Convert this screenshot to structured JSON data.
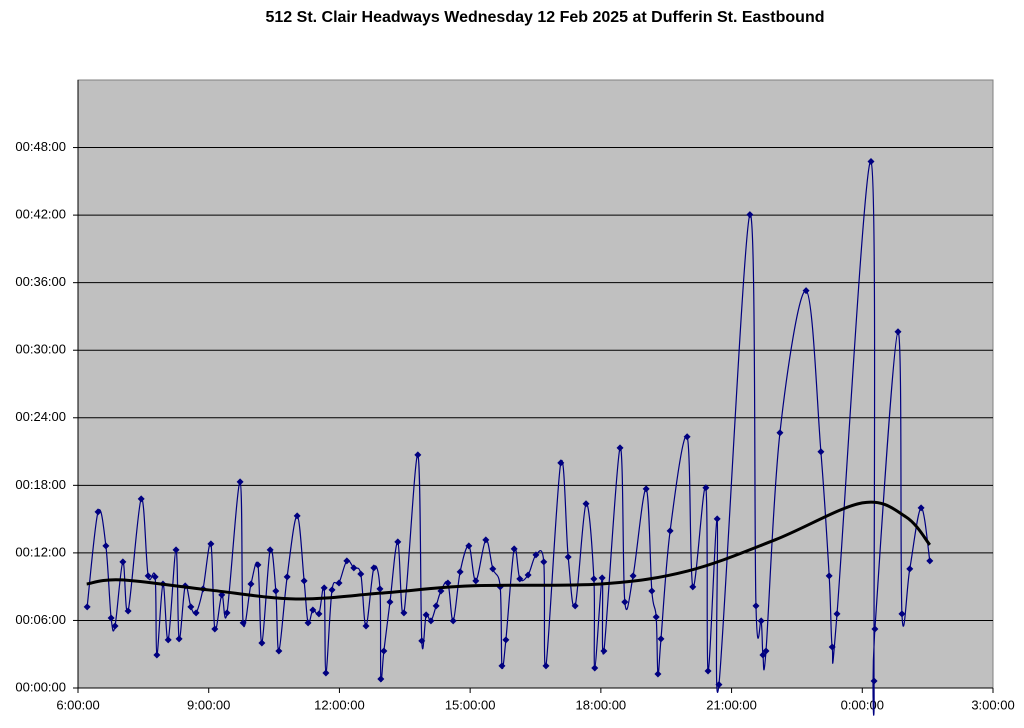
{
  "chart_data": {
    "type": "line",
    "title": "512 St. Clair Headways Wednesday 12 Feb 2025 at Dufferin St. Eastbound",
    "xlim": [
      6,
      27
    ],
    "xticks": [
      {
        "value": 6,
        "label": "6:00:00"
      },
      {
        "value": 9,
        "label": "9:00:00"
      },
      {
        "value": 12,
        "label": "12:00:00"
      },
      {
        "value": 15,
        "label": "15:00:00"
      },
      {
        "value": 18,
        "label": "18:00:00"
      },
      {
        "value": 21,
        "label": "21:00:00"
      },
      {
        "value": 24,
        "label": "0:00:00"
      },
      {
        "value": 27,
        "label": "3:00:00"
      }
    ],
    "ylim": [
      0,
      54
    ],
    "yticks": [
      {
        "value": 0,
        "label": "00:00:00"
      },
      {
        "value": 6,
        "label": "00:06:00"
      },
      {
        "value": 12,
        "label": "00:12:00"
      },
      {
        "value": 18,
        "label": "00:18:00"
      },
      {
        "value": 24,
        "label": "00:24:00"
      },
      {
        "value": 30,
        "label": "00:30:00"
      },
      {
        "value": 36,
        "label": "00:36:00"
      },
      {
        "value": 42,
        "label": "00:42:00"
      },
      {
        "value": 48,
        "label": "00:48:00"
      }
    ],
    "grid": true,
    "plot_background": "#c0c0c0",
    "series": [
      {
        "color": "#000080",
        "markers": true,
        "smooth": true,
        "x": [
          6.21,
          6.46,
          6.64,
          6.76,
          6.85,
          7.03,
          7.15,
          7.45,
          7.61,
          7.77,
          7.81,
          7.95,
          8.07,
          8.25,
          8.32,
          8.46,
          8.59,
          8.71,
          8.87,
          9.05,
          9.14,
          9.3,
          9.42,
          9.72,
          9.79,
          9.97,
          10.13,
          10.22,
          10.41,
          10.54,
          10.61,
          10.8,
          11.03,
          11.19,
          11.28,
          11.39,
          11.53,
          11.65,
          11.69,
          11.83,
          11.99,
          12.17,
          12.33,
          12.49,
          12.61,
          12.79,
          12.93,
          12.95,
          13.02,
          13.16,
          13.34,
          13.48,
          13.8,
          13.89,
          13.99,
          14.1,
          14.22,
          14.33,
          14.49,
          14.61,
          14.77,
          14.97,
          15.13,
          15.36,
          15.52,
          15.69,
          15.73,
          15.82,
          16.01,
          16.14,
          16.33,
          16.51,
          16.69,
          16.74,
          17.08,
          17.25,
          17.41,
          17.66,
          17.84,
          17.86,
          18.03,
          18.07,
          18.44,
          18.55,
          18.74,
          19.04,
          19.17,
          19.27,
          19.31,
          19.38,
          19.59,
          19.98,
          20.11,
          20.41,
          20.46,
          20.67,
          20.71,
          21.42,
          21.56,
          21.68,
          21.72,
          21.79,
          22.11,
          22.71,
          23.05,
          23.24,
          23.31,
          23.42,
          24.2,
          24.27,
          24.29,
          24.82,
          24.91,
          25.09,
          25.35,
          25.55
        ],
        "values": [
          7.2,
          15.64,
          12.62,
          6.22,
          5.51,
          11.2,
          6.84,
          16.8,
          9.96,
          9.87,
          2.93,
          9.24,
          4.27,
          12.27,
          4.36,
          9.07,
          7.2,
          6.67,
          8.8,
          12.8,
          5.24,
          8.27,
          6.67,
          18.31,
          5.78,
          9.24,
          10.93,
          4.0,
          12.27,
          8.62,
          3.29,
          9.87,
          15.29,
          9.51,
          5.78,
          6.93,
          6.58,
          8.89,
          1.33,
          8.71,
          9.33,
          11.29,
          10.67,
          10.13,
          5.51,
          10.67,
          8.8,
          0.8,
          3.29,
          7.64,
          12.98,
          6.67,
          20.71,
          4.18,
          6.49,
          5.96,
          7.29,
          8.62,
          9.33,
          5.96,
          10.31,
          12.62,
          9.51,
          13.16,
          10.58,
          8.98,
          1.96,
          4.27,
          12.36,
          9.69,
          10.04,
          11.82,
          11.2,
          1.96,
          20.0,
          11.64,
          7.29,
          16.36,
          9.69,
          1.78,
          9.78,
          3.29,
          21.33,
          7.64,
          9.96,
          17.69,
          8.62,
          6.31,
          1.24,
          4.36,
          13.96,
          22.31,
          8.98,
          17.78,
          1.51,
          15.02,
          0.3,
          42.04,
          7.29,
          5.96,
          2.93,
          3.29,
          22.67,
          35.29,
          20.98,
          9.96,
          3.64,
          6.58,
          46.76,
          0.62,
          5.24,
          31.64,
          6.58,
          10.58,
          16.0,
          11.29
        ]
      },
      {
        "color": "#000000",
        "markers": false,
        "smooth": true,
        "x": [
          6.2,
          7,
          9,
          11,
          13,
          15,
          18,
          20,
          22,
          24,
          25,
          25.55
        ],
        "values": [
          9.24,
          9.6,
          8.71,
          7.91,
          8.44,
          9.07,
          9.24,
          10.4,
          13.16,
          16.44,
          15.2,
          12.71
        ]
      }
    ]
  }
}
